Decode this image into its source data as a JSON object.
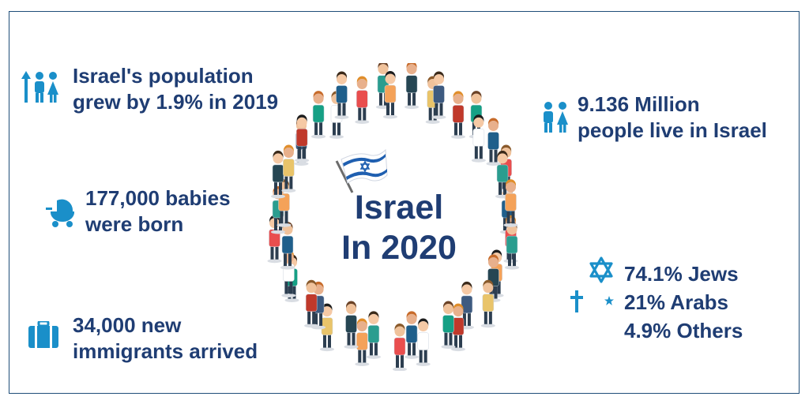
{
  "colors": {
    "text": "#1f3d73",
    "icon": "#1a8fc9",
    "frame": "#1f4e79",
    "flag": "#1f5fb0"
  },
  "center": {
    "line1": "Israel",
    "line2": "In 2020"
  },
  "stats": {
    "growth": {
      "icon": "population-growth-icon",
      "line1": "Israel's population",
      "line2": "grew by 1.9% in 2019"
    },
    "population": {
      "icon": "people-icon",
      "line1": "9.136 Million",
      "line2": "people live in Israel"
    },
    "babies": {
      "icon": "baby-stroller-icon",
      "line1": "177,000 babies",
      "line2": "were born"
    },
    "religion": {
      "icons": [
        "star-of-david-icon",
        "cross-icon",
        "crescent-star-icon"
      ],
      "jews": "74.1% Jews",
      "arabs": "21% Arabs",
      "others": "4.9% Others"
    },
    "immigrants": {
      "icon": "suitcase-icon",
      "line1": "34,000 new",
      "line2": "immigrants arrived"
    }
  }
}
